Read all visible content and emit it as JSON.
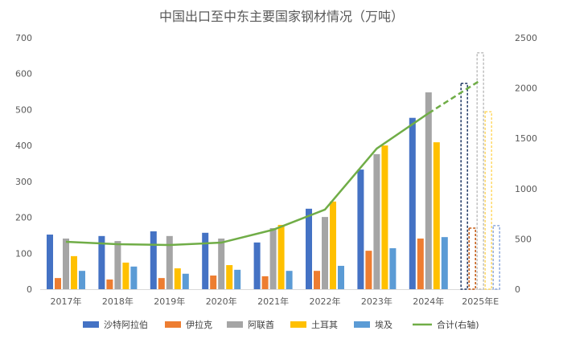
{
  "chart_data": {
    "type": "bar",
    "title": "中国出口至中东主要国家钢材情况（万吨）",
    "categories": [
      "2017年",
      "2018年",
      "2019年",
      "2020年",
      "2021年",
      "2022年",
      "2023年",
      "2024年",
      "2025年E"
    ],
    "estimated_category": "2025年E",
    "ylim": [
      0,
      700
    ],
    "yticks": [
      "0",
      "100",
      "200",
      "300",
      "400",
      "500",
      "600",
      "700"
    ],
    "y2lim": [
      0,
      2500
    ],
    "y2ticks": [
      "0",
      "500",
      "1000",
      "1500",
      "2000",
      "2500"
    ],
    "grid": false,
    "legend_position": "bottom",
    "series": [
      {
        "name": "沙特阿拉伯",
        "type": "bar",
        "axis": "left",
        "color": "#4472C4",
        "values": [
          152,
          148,
          161,
          157,
          130,
          224,
          333,
          477,
          573
        ]
      },
      {
        "name": "伊拉克",
        "type": "bar",
        "axis": "left",
        "color": "#ED7D31",
        "values": [
          31,
          27,
          31,
          38,
          36,
          51,
          107,
          141,
          170
        ]
      },
      {
        "name": "阿联酋",
        "type": "bar",
        "axis": "left",
        "color": "#A5A5A5",
        "values": [
          141,
          134,
          148,
          141,
          170,
          201,
          376,
          548,
          658
        ]
      },
      {
        "name": "土耳其",
        "type": "bar",
        "axis": "left",
        "color": "#FFC000",
        "values": [
          92,
          74,
          58,
          67,
          179,
          244,
          400,
          409,
          494
        ]
      },
      {
        "name": "埃及",
        "type": "bar",
        "axis": "left",
        "color": "#5B9BD5",
        "values": [
          51,
          63,
          43,
          54,
          51,
          65,
          114,
          145,
          177
        ]
      },
      {
        "name": "合计(右轴)",
        "type": "line",
        "axis": "right",
        "color": "#70AD47",
        "values": [
          471,
          447,
          439,
          463,
          591,
          791,
          1398,
          1749,
          2077
        ]
      }
    ],
    "estimate_outline_colors": [
      "#203864",
      "#C55A11",
      "#BFBFBF",
      "#FFD966",
      "#8FAADC"
    ]
  }
}
